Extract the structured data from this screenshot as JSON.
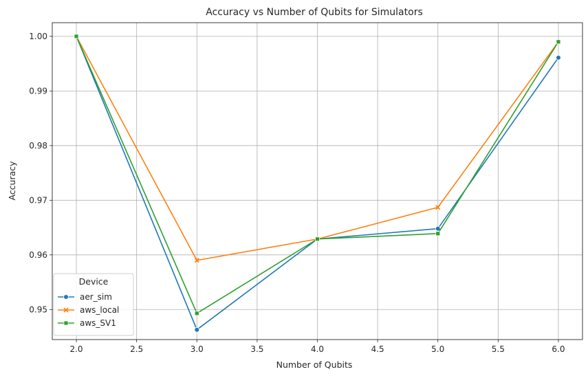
{
  "chart_data": {
    "type": "line",
    "title": "Accuracy vs Number of Qubits for Simulators",
    "xlabel": "Number of Qubits",
    "ylabel": "Accuracy",
    "x": [
      2.0,
      3.0,
      4.0,
      5.0,
      6.0
    ],
    "xlim": [
      1.8,
      6.2
    ],
    "ylim": [
      0.9445,
      1.0025
    ],
    "xticks": [
      "2.0",
      "2.5",
      "3.0",
      "3.5",
      "4.0",
      "4.5",
      "5.0",
      "5.5",
      "6.0"
    ],
    "xtick_values": [
      2.0,
      2.5,
      3.0,
      3.5,
      4.0,
      4.5,
      5.0,
      5.5,
      6.0
    ],
    "yticks": [
      "0.95",
      "0.96",
      "0.97",
      "0.98",
      "0.99",
      "1.00"
    ],
    "ytick_values": [
      0.95,
      0.96,
      0.97,
      0.98,
      0.99,
      1.0
    ],
    "grid": true,
    "legend": {
      "title": "Device",
      "position": "lower-left"
    },
    "series": [
      {
        "name": "aer_sim",
        "color": "#1f77b4",
        "marker": "circle",
        "values": [
          1.0,
          0.9463,
          0.9629,
          0.9648,
          0.9961
        ]
      },
      {
        "name": "aws_local",
        "color": "#ff7f0e",
        "marker": "x",
        "values": [
          1.0,
          0.959,
          0.9629,
          0.9687,
          0.999
        ]
      },
      {
        "name": "aws_SV1",
        "color": "#2ca02c",
        "marker": "square",
        "values": [
          1.0,
          0.9493,
          0.9629,
          0.9639,
          0.999
        ]
      }
    ]
  }
}
